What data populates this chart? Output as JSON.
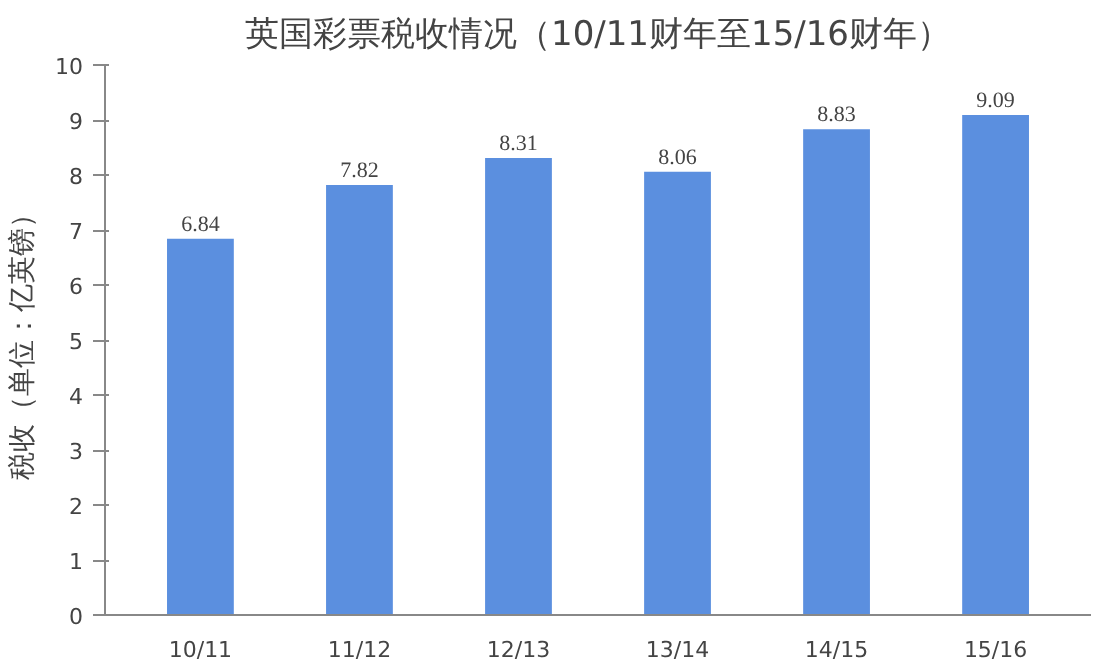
{
  "chart_data": {
    "type": "bar",
    "title": "英国彩票税收情况（10/11财年至15/16财年）",
    "ylabel": "税收（单位：亿英镑）",
    "categories": [
      "10/11",
      "11/12",
      "12/13",
      "13/14",
      "14/15",
      "15/16"
    ],
    "values": [
      6.84,
      7.82,
      8.31,
      8.06,
      8.83,
      9.09
    ],
    "color": "#5b8fdf",
    "ylim": [
      0,
      10
    ],
    "yticks": [
      0,
      1,
      2,
      3,
      4,
      5,
      6,
      7,
      8,
      9,
      10
    ],
    "grid": false,
    "data_labels": true
  }
}
